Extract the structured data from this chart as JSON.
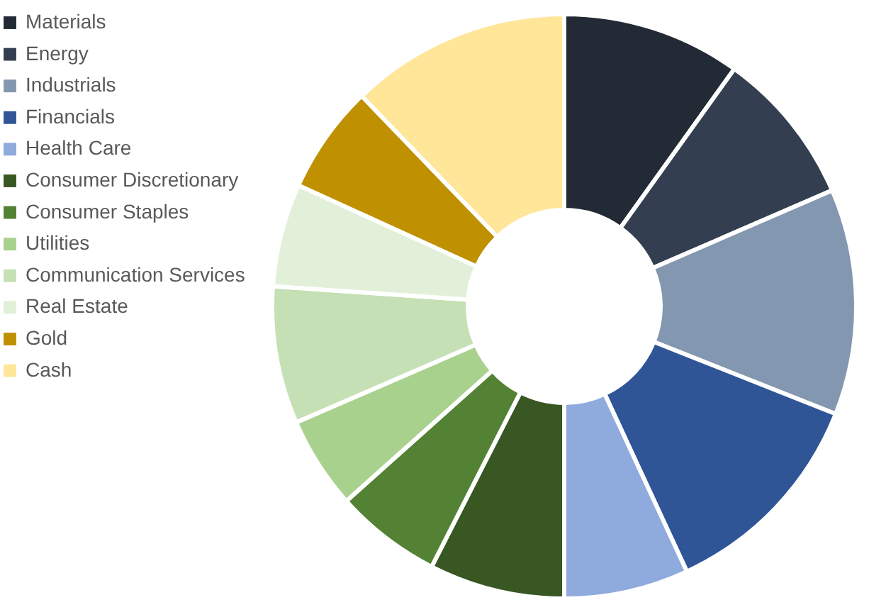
{
  "chart_data": {
    "type": "donut",
    "categories": [
      "Materials",
      "Energy",
      "Industrials",
      "Financials",
      "Health Care",
      "Consumer Discretionary",
      "Consumer Staples",
      "Utilities",
      "Communication Services",
      "Real Estate",
      "Gold",
      "Cash"
    ],
    "values": [
      9.9,
      8.6,
      12.5,
      12.1,
      6.9,
      7.5,
      5.9,
      5.1,
      7.6,
      5.7,
      6.0,
      12.2
    ],
    "colors": [
      "#222a35",
      "#333f50",
      "#8497b0",
      "#2f5597",
      "#8faadc",
      "#385723",
      "#548235",
      "#a9d18e",
      "#c5e0b4",
      "#e2f0d9",
      "#bf9000",
      "#ffe699"
    ],
    "legend": "left"
  }
}
